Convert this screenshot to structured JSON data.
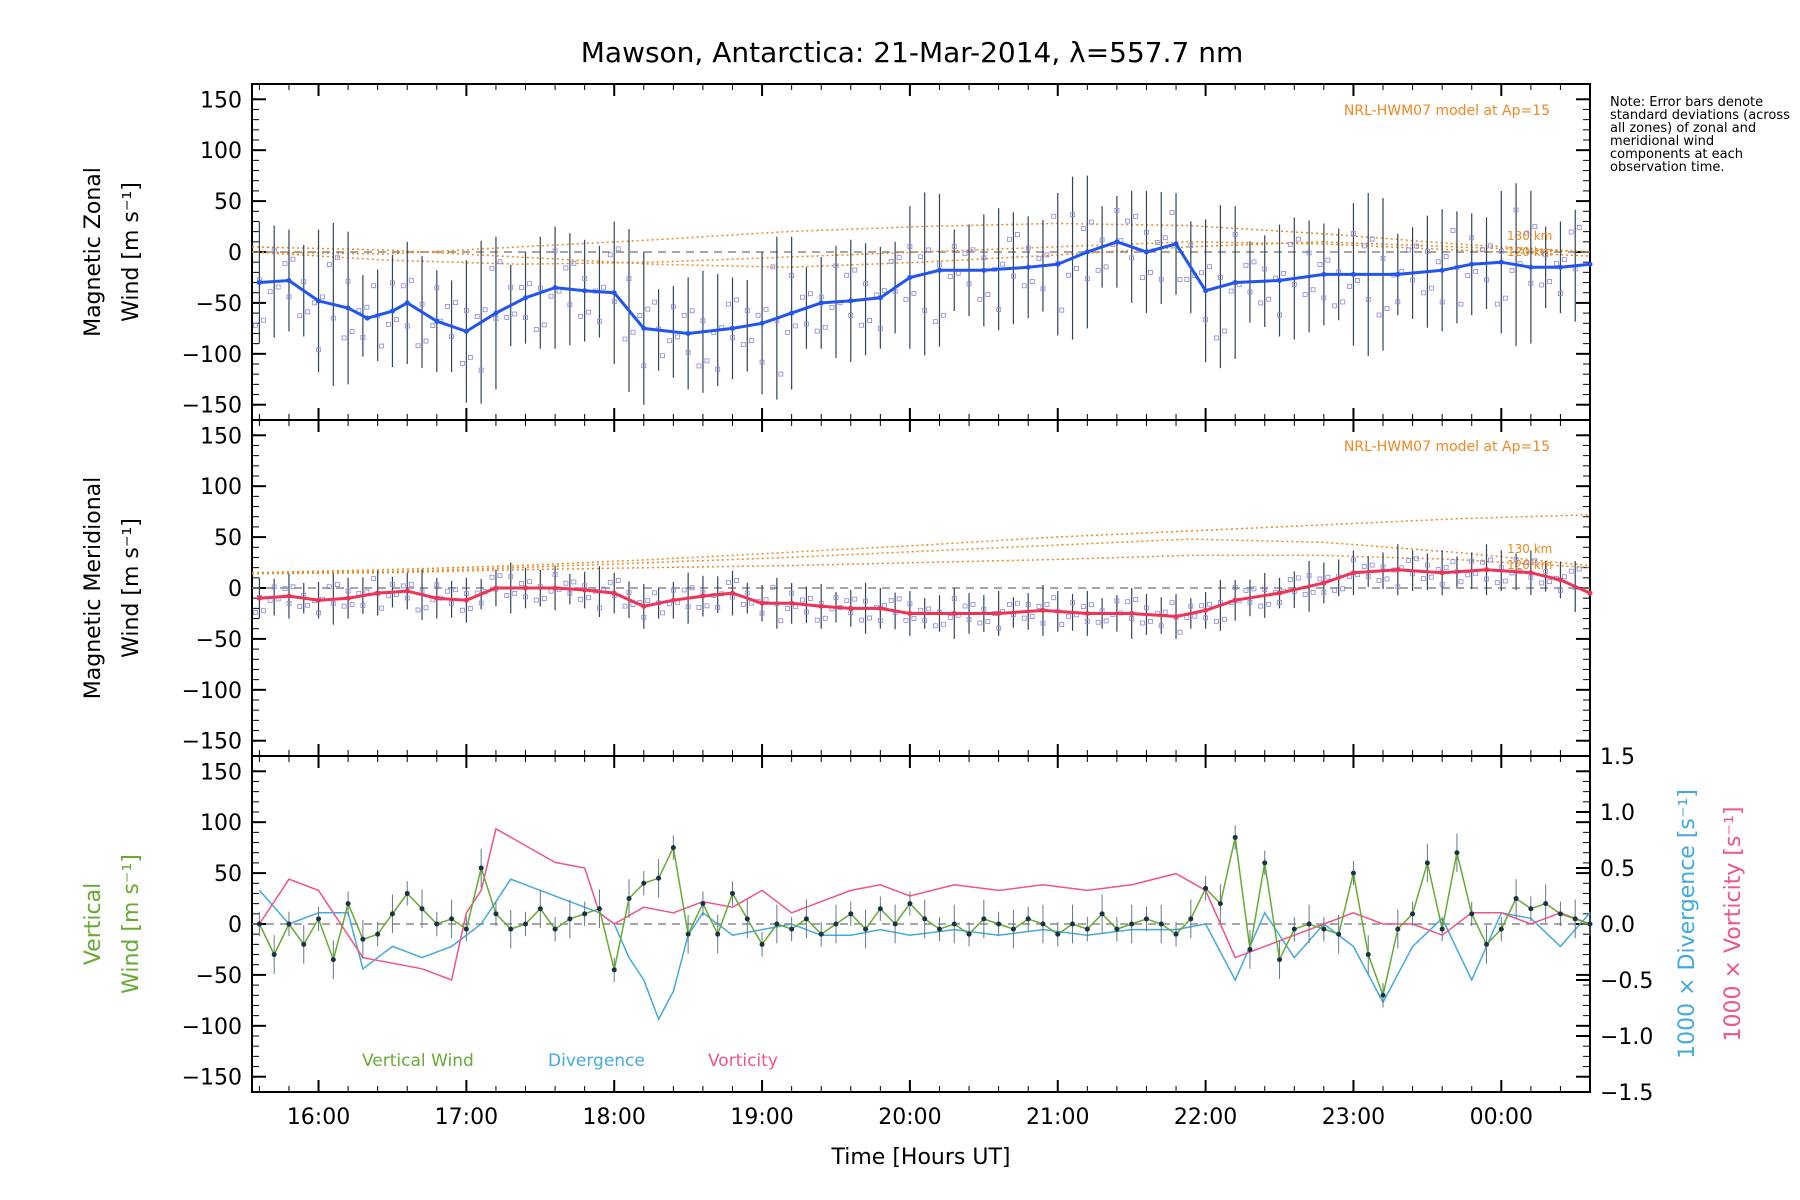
{
  "title": "Mawson, Antarctica: 21-Mar-2014, λ=557.7 nm",
  "note": "Note: Error bars denote standard deviations (across all zones) of zonal and meridional wind components at each observation time.",
  "xlabel": "Time [Hours UT]",
  "x_ticks": [
    "16:00",
    "17:00",
    "18:00",
    "19:00",
    "20:00",
    "21:00",
    "22:00",
    "23:00",
    "00:00"
  ],
  "y_ticks": [
    150,
    100,
    50,
    0,
    -50,
    -100,
    -150
  ],
  "right_ticks": [
    "1.5",
    "1.0",
    "0.5",
    "0.0",
    "−0.5",
    "−1.0",
    "−1.5"
  ],
  "colors": {
    "zonal": "#2255ee",
    "meridional": "#ee3355",
    "vertical": "#66aa33",
    "divergence": "#44aadd",
    "vorticity": "#ee5588",
    "model": "#ee8822",
    "scatter": "#8888dd"
  },
  "chart_data": [
    {
      "type": "line",
      "panel": "zonal",
      "ylabel_lines": [
        "Magnetic Zonal",
        "Wind [m s⁻¹]"
      ],
      "ylim": [
        -165,
        165
      ],
      "xlim_hours": [
        15.55,
        24.6
      ],
      "model_label": "NRL-HWM07 model at Ap=15",
      "model_levels": [
        "130 km",
        "120 km"
      ],
      "series": [
        {
          "name": "",
          "x": [
            15.6,
            15.8,
            16.0,
            16.2,
            16.33,
            16.5,
            16.6,
            16.8,
            17.0,
            17.2,
            17.4,
            17.6,
            17.8,
            18.0,
            18.2,
            18.5,
            18.8,
            19.0,
            19.2,
            19.4,
            19.6,
            19.8,
            20.0,
            20.2,
            20.5,
            20.8,
            21.0,
            21.2,
            21.4,
            21.6,
            21.8,
            22.0,
            22.2,
            22.5,
            22.8,
            23.0,
            23.3,
            23.6,
            23.8,
            24.0,
            24.2,
            24.4,
            24.6
          ],
          "y": [
            -30,
            -28,
            -48,
            -55,
            -65,
            -58,
            -50,
            -68,
            -78,
            -60,
            -45,
            -35,
            -38,
            -40,
            -75,
            -80,
            -75,
            -70,
            -60,
            -50,
            -48,
            -45,
            -25,
            -18,
            -18,
            -15,
            -12,
            0,
            10,
            0,
            8,
            -38,
            -30,
            -28,
            -22,
            -22,
            -22,
            -18,
            -12,
            -10,
            -15,
            -15,
            -12
          ]
        }
      ]
    },
    {
      "type": "line",
      "panel": "meridional",
      "ylabel_lines": [
        "Magnetic Meridional",
        "Wind [m s⁻¹]"
      ],
      "ylim": [
        -165,
        165
      ],
      "xlim_hours": [
        15.55,
        24.6
      ],
      "model_label": "NRL-HWM07 model at Ap=15",
      "model_levels": [
        "130 km",
        "120 km"
      ],
      "series": [
        {
          "name": "",
          "x": [
            15.6,
            15.8,
            16.0,
            16.2,
            16.4,
            16.6,
            16.8,
            17.0,
            17.2,
            17.4,
            17.6,
            17.8,
            18.0,
            18.2,
            18.4,
            18.6,
            18.8,
            19.0,
            19.2,
            19.4,
            19.6,
            19.8,
            20.0,
            20.3,
            20.6,
            20.9,
            21.2,
            21.5,
            21.8,
            22.0,
            22.2,
            22.5,
            22.8,
            23.0,
            23.3,
            23.6,
            23.9,
            24.2,
            24.4,
            24.6
          ],
          "y": [
            -10,
            -8,
            -12,
            -10,
            -5,
            -3,
            -10,
            -12,
            0,
            0,
            0,
            -2,
            -5,
            -18,
            -12,
            -8,
            -5,
            -15,
            -15,
            -18,
            -20,
            -20,
            -25,
            -25,
            -25,
            -22,
            -25,
            -25,
            -28,
            -22,
            -12,
            -5,
            5,
            15,
            18,
            15,
            18,
            15,
            8,
            -5
          ]
        }
      ]
    },
    {
      "type": "line",
      "panel": "vertical",
      "ylabel_lines": [
        "Vertical",
        "Wind [m s⁻¹]"
      ],
      "right_ylabel_div": "1000 × Divergence [s⁻¹]",
      "right_ylabel_vort": "1000 × Vorticity [s⁻¹]",
      "ylim": [
        -165,
        165
      ],
      "right_ylim": [
        -1.5,
        1.5
      ],
      "xlim_hours": [
        15.55,
        24.6
      ],
      "legend": [
        "Vertical Wind",
        "Divergence",
        "Vorticity"
      ],
      "series": [
        {
          "name": "Vertical Wind",
          "axis": "left",
          "x": [
            15.6,
            15.7,
            15.8,
            15.9,
            16.0,
            16.1,
            16.2,
            16.3,
            16.4,
            16.5,
            16.6,
            16.7,
            16.8,
            16.9,
            17.0,
            17.1,
            17.2,
            17.3,
            17.4,
            17.5,
            17.6,
            17.7,
            17.8,
            17.9,
            18.0,
            18.1,
            18.2,
            18.3,
            18.4,
            18.5,
            18.6,
            18.7,
            18.8,
            18.9,
            19.0,
            19.1,
            19.2,
            19.3,
            19.4,
            19.5,
            19.6,
            19.7,
            19.8,
            19.9,
            20.0,
            20.1,
            20.2,
            20.3,
            20.4,
            20.5,
            20.6,
            20.7,
            20.8,
            20.9,
            21.0,
            21.1,
            21.2,
            21.3,
            21.4,
            21.5,
            21.6,
            21.7,
            21.8,
            21.9,
            22.0,
            22.1,
            22.2,
            22.3,
            22.4,
            22.5,
            22.6,
            22.7,
            22.8,
            22.9,
            23.0,
            23.1,
            23.2,
            23.3,
            23.4,
            23.5,
            23.6,
            23.7,
            23.8,
            23.9,
            24.0,
            24.1,
            24.2,
            24.3,
            24.4,
            24.5,
            24.6
          ],
          "y": [
            0,
            -30,
            0,
            -20,
            5,
            -35,
            20,
            -15,
            -10,
            10,
            30,
            15,
            0,
            5,
            -5,
            55,
            10,
            -5,
            0,
            15,
            -5,
            5,
            10,
            15,
            -45,
            25,
            40,
            45,
            75,
            -10,
            20,
            -10,
            30,
            5,
            -20,
            0,
            -5,
            5,
            -10,
            0,
            10,
            -5,
            15,
            0,
            20,
            5,
            -5,
            0,
            -10,
            5,
            0,
            -5,
            5,
            0,
            -10,
            0,
            -5,
            10,
            -5,
            0,
            5,
            0,
            -10,
            5,
            35,
            20,
            85,
            -25,
            60,
            -35,
            -5,
            0,
            -5,
            -10,
            50,
            -30,
            -70,
            -5,
            10,
            60,
            -5,
            70,
            10,
            -20,
            -5,
            25,
            15,
            20,
            10,
            5,
            0
          ]
        },
        {
          "name": "Divergence",
          "axis": "right",
          "x": [
            15.6,
            15.8,
            16.0,
            16.2,
            16.3,
            16.5,
            16.7,
            16.9,
            17.1,
            17.3,
            17.5,
            17.7,
            17.9,
            18.0,
            18.1,
            18.2,
            18.3,
            18.4,
            18.5,
            18.6,
            18.8,
            19.0,
            19.2,
            19.4,
            19.6,
            19.8,
            20.0,
            20.3,
            20.6,
            20.9,
            21.2,
            21.5,
            21.8,
            22.0,
            22.2,
            22.4,
            22.6,
            22.8,
            23.0,
            23.2,
            23.4,
            23.6,
            23.8,
            24.0,
            24.2,
            24.4,
            24.6
          ],
          "y": [
            0.3,
            0.0,
            0.1,
            0.1,
            -0.4,
            -0.2,
            -0.3,
            -0.2,
            0.0,
            0.4,
            0.3,
            0.2,
            0.1,
            0.0,
            -0.3,
            -0.5,
            -0.85,
            -0.6,
            -0.1,
            0.1,
            -0.1,
            -0.05,
            0.0,
            -0.1,
            -0.1,
            -0.05,
            -0.1,
            -0.05,
            -0.1,
            -0.05,
            -0.1,
            -0.05,
            -0.05,
            0.0,
            -0.5,
            0.1,
            -0.3,
            0.0,
            -0.2,
            -0.7,
            -0.2,
            0.05,
            -0.5,
            0.1,
            0.05,
            -0.2,
            0.1
          ]
        },
        {
          "name": "Vorticity",
          "axis": "right",
          "x": [
            15.6,
            15.8,
            16.0,
            16.2,
            16.3,
            16.5,
            16.7,
            16.9,
            17.0,
            17.1,
            17.2,
            17.4,
            17.6,
            17.8,
            17.9,
            18.0,
            18.2,
            18.4,
            18.6,
            18.8,
            19.0,
            19.2,
            19.4,
            19.6,
            19.8,
            20.0,
            20.3,
            20.6,
            20.9,
            21.2,
            21.5,
            21.8,
            22.0,
            22.2,
            22.4,
            22.6,
            22.8,
            23.0,
            23.2,
            23.4,
            23.6,
            23.8,
            24.0,
            24.2,
            24.4,
            24.6
          ],
          "y": [
            0.0,
            0.4,
            0.3,
            -0.1,
            -0.3,
            -0.35,
            -0.4,
            -0.5,
            0.1,
            0.3,
            0.85,
            0.7,
            0.55,
            0.5,
            0.1,
            0.0,
            0.15,
            0.1,
            0.2,
            0.15,
            0.3,
            0.1,
            0.2,
            0.3,
            0.35,
            0.25,
            0.35,
            0.3,
            0.35,
            0.3,
            0.35,
            0.45,
            0.3,
            -0.3,
            -0.2,
            -0.1,
            0.0,
            0.1,
            0.0,
            0.0,
            -0.1,
            0.1,
            0.1,
            0.0,
            0.1,
            0.0
          ]
        }
      ]
    }
  ]
}
